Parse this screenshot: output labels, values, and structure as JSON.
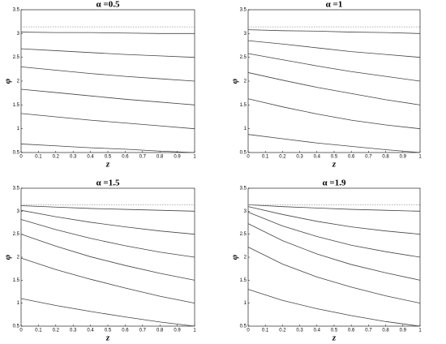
{
  "chart_data": [
    {
      "type": "line",
      "title": "α =0.5",
      "x_label": "z",
      "y_label": "φ",
      "x": [
        0,
        0.2,
        0.4,
        0.6,
        0.8,
        1
      ],
      "xlim": [
        0,
        1
      ],
      "xticks": [
        0,
        0.1,
        0.2,
        0.3,
        0.4,
        0.5,
        0.6,
        0.7,
        0.8,
        0.9,
        1
      ],
      "ylim": [
        0.5,
        3.5
      ],
      "yticks": [
        0.5,
        1,
        1.5,
        2,
        2.5,
        3,
        3.5
      ],
      "series": [
        {
          "color": "#444",
          "values": [
            0.68,
            0.64,
            0.6,
            0.57,
            0.53,
            0.5
          ]
        },
        {
          "color": "#444",
          "values": [
            1.32,
            1.25,
            1.18,
            1.12,
            1.06,
            1.0
          ]
        },
        {
          "color": "#444",
          "values": [
            1.83,
            1.76,
            1.69,
            1.62,
            1.56,
            1.5
          ]
        },
        {
          "color": "#444",
          "values": [
            2.3,
            2.23,
            2.16,
            2.1,
            2.05,
            2.0
          ]
        },
        {
          "color": "#444",
          "values": [
            2.68,
            2.64,
            2.6,
            2.56,
            2.53,
            2.5
          ]
        },
        {
          "color": "#444",
          "values": [
            3.03,
            3.02,
            3.02,
            3.01,
            3.0,
            3.0
          ]
        },
        {
          "color": "#999",
          "style": "dotted",
          "values": [
            3.14,
            3.14,
            3.14,
            3.14,
            3.14,
            3.14
          ]
        }
      ]
    },
    {
      "type": "line",
      "title": "α =1",
      "x_label": "z",
      "y_label": "φ",
      "x": [
        0,
        0.2,
        0.4,
        0.6,
        0.8,
        1
      ],
      "xlim": [
        0,
        1
      ],
      "xticks": [
        0,
        0.1,
        0.2,
        0.3,
        0.4,
        0.5,
        0.6,
        0.7,
        0.8,
        0.9,
        1
      ],
      "ylim": [
        0.5,
        3.5
      ],
      "yticks": [
        0.5,
        1,
        1.5,
        2,
        2.5,
        3,
        3.5
      ],
      "series": [
        {
          "color": "#444",
          "values": [
            0.88,
            0.79,
            0.7,
            0.63,
            0.56,
            0.5
          ]
        },
        {
          "color": "#444",
          "values": [
            1.63,
            1.46,
            1.31,
            1.18,
            1.08,
            1.0
          ]
        },
        {
          "color": "#444",
          "values": [
            2.18,
            2.02,
            1.87,
            1.74,
            1.61,
            1.5
          ]
        },
        {
          "color": "#444",
          "values": [
            2.58,
            2.45,
            2.32,
            2.2,
            2.1,
            2.0
          ]
        },
        {
          "color": "#444",
          "values": [
            2.85,
            2.78,
            2.7,
            2.62,
            2.56,
            2.5
          ]
        },
        {
          "color": "#444",
          "values": [
            3.08,
            3.06,
            3.05,
            3.03,
            3.02,
            3.0
          ]
        },
        {
          "color": "#999",
          "style": "dotted",
          "values": [
            3.14,
            3.14,
            3.14,
            3.14,
            3.14,
            3.14
          ]
        }
      ]
    },
    {
      "type": "line",
      "title": "α =1.5",
      "x_label": "z",
      "y_label": "φ",
      "x": [
        0,
        0.2,
        0.4,
        0.6,
        0.8,
        1
      ],
      "xlim": [
        0,
        1
      ],
      "xticks": [
        0,
        0.1,
        0.2,
        0.3,
        0.4,
        0.5,
        0.6,
        0.7,
        0.8,
        0.9,
        1
      ],
      "ylim": [
        0.5,
        3.5
      ],
      "yticks": [
        0.5,
        1,
        1.5,
        2,
        2.5,
        3,
        3.5
      ],
      "series": [
        {
          "color": "#444",
          "values": [
            1.1,
            0.95,
            0.82,
            0.7,
            0.59,
            0.5
          ]
        },
        {
          "color": "#444",
          "values": [
            1.98,
            1.73,
            1.52,
            1.33,
            1.15,
            1.0
          ]
        },
        {
          "color": "#444",
          "values": [
            2.5,
            2.24,
            2.01,
            1.82,
            1.65,
            1.5
          ]
        },
        {
          "color": "#444",
          "values": [
            2.82,
            2.6,
            2.41,
            2.25,
            2.11,
            2.0
          ]
        },
        {
          "color": "#444",
          "values": [
            3.02,
            2.88,
            2.76,
            2.66,
            2.57,
            2.5
          ]
        },
        {
          "color": "#444",
          "values": [
            3.12,
            3.09,
            3.06,
            3.04,
            3.02,
            3.0
          ]
        },
        {
          "color": "#999",
          "style": "dotted",
          "values": [
            3.14,
            3.14,
            3.14,
            3.14,
            3.14,
            3.14
          ]
        }
      ]
    },
    {
      "type": "line",
      "title": "α =1.9",
      "x_label": "z",
      "y_label": "φ",
      "x": [
        0,
        0.2,
        0.4,
        0.6,
        0.8,
        1
      ],
      "xlim": [
        0,
        1
      ],
      "xticks": [
        0,
        0.1,
        0.2,
        0.3,
        0.4,
        0.5,
        0.6,
        0.7,
        0.8,
        0.9,
        1
      ],
      "ylim": [
        0.5,
        3.5
      ],
      "yticks": [
        0.5,
        1,
        1.5,
        2,
        2.5,
        3,
        3.5
      ],
      "series": [
        {
          "color": "#444",
          "values": [
            1.3,
            1.06,
            0.88,
            0.73,
            0.6,
            0.5
          ]
        },
        {
          "color": "#444",
          "values": [
            2.22,
            1.85,
            1.57,
            1.35,
            1.16,
            1.0
          ]
        },
        {
          "color": "#444",
          "values": [
            2.73,
            2.36,
            2.07,
            1.84,
            1.66,
            1.5
          ]
        },
        {
          "color": "#444",
          "values": [
            2.98,
            2.68,
            2.45,
            2.26,
            2.12,
            2.0
          ]
        },
        {
          "color": "#444",
          "values": [
            3.1,
            2.93,
            2.78,
            2.66,
            2.57,
            2.5
          ]
        },
        {
          "color": "#444",
          "values": [
            3.14,
            3.1,
            3.07,
            3.04,
            3.02,
            3.0
          ]
        },
        {
          "color": "#999",
          "style": "dotted",
          "values": [
            3.14,
            3.14,
            3.14,
            3.14,
            3.14,
            3.14
          ]
        }
      ]
    }
  ]
}
